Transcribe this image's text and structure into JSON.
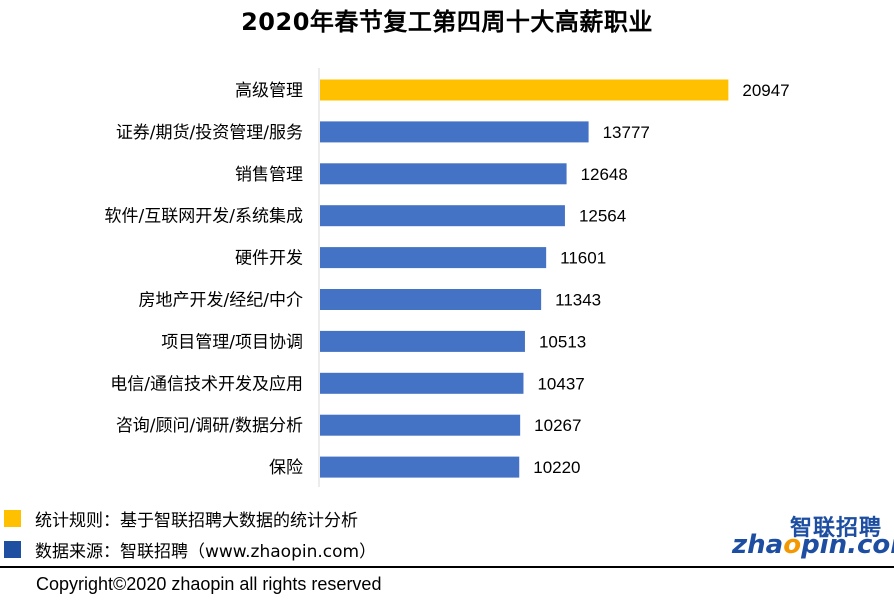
{
  "title": "2020年春节复工第四周十大高薪职业",
  "chart_data": {
    "type": "bar",
    "orientation": "horizontal",
    "categories": [
      "高级管理",
      "证券/期货/投资管理/服务",
      "销售管理",
      "软件/互联网开发/系统集成",
      "硬件开发",
      "房地产开发/经纪/中介",
      "项目管理/项目协调",
      "电信/通信技术开发及应用",
      "咨询/顾问/调研/数据分析",
      "保险"
    ],
    "values": [
      20947,
      13777,
      12648,
      12564,
      11601,
      11343,
      10513,
      10437,
      10267,
      10220
    ],
    "highlight_index": 0,
    "colors": {
      "highlight": "#ffc000",
      "default": "#4472c4"
    },
    "xlim": [
      0,
      21800
    ],
    "grid": false,
    "title": "2020年春节复工第四周十大高薪职业"
  },
  "legend": [
    {
      "color": "#ffc000",
      "text": "统计规则：基于智联招聘大数据的统计分析"
    },
    {
      "color": "#1f4fa0",
      "text": "数据来源：智联招聘（www.zhaopin.com）"
    }
  ],
  "logo": {
    "cn": "智联招聘",
    "en_prefix": "zha",
    "en_o": "o",
    "en_suffix": "pin.com"
  },
  "copyright": "Copyright©2020 zhaopin all rights reserved"
}
